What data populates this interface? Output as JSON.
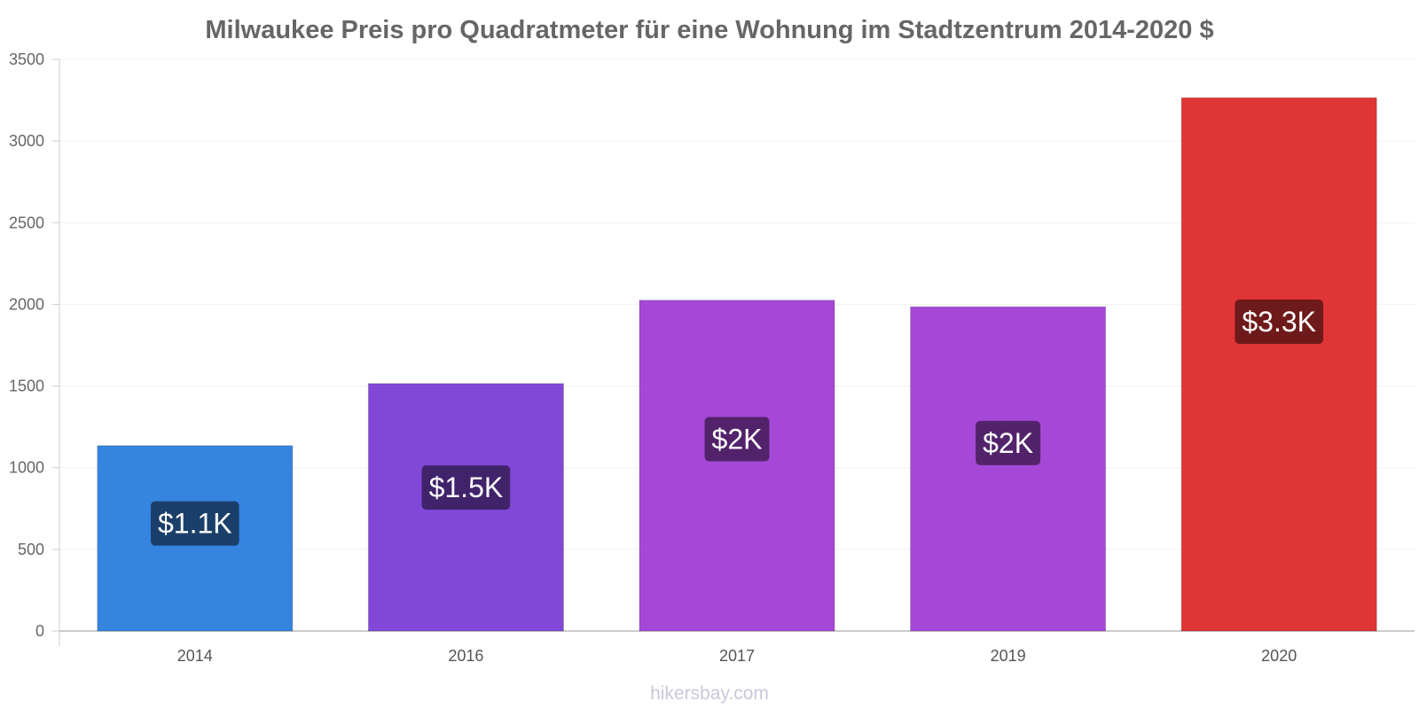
{
  "chart_data": {
    "type": "bar",
    "title": "Milwaukee Preis pro Quadratmeter für eine Wohnung im Stadtzentrum 2014-2020 $",
    "categories": [
      "2014",
      "2016",
      "2017",
      "2019",
      "2020"
    ],
    "values": [
      1135,
      1515,
      2025,
      1985,
      3265
    ],
    "value_labels": [
      "$1.1K",
      "$1.5K",
      "$2K",
      "$2K",
      "$3.3K"
    ],
    "bar_colors": [
      "#3584e0",
      "#8148d8",
      "#a548d8",
      "#a548d8",
      "#e03535"
    ],
    "label_bg_colors": [
      "#1b3f6b",
      "#40236b",
      "#52236b",
      "#52236b",
      "#6e1a1a"
    ],
    "ylim": [
      0,
      3500
    ],
    "yticks": [
      "0",
      "500",
      "1000",
      "1500",
      "2000",
      "2500",
      "3000",
      "3500"
    ],
    "ytick_values": [
      0,
      500,
      1000,
      1500,
      2000,
      2500,
      3000,
      3500
    ],
    "grid": true,
    "legend": "none"
  },
  "watermark": "hikersbay.com"
}
